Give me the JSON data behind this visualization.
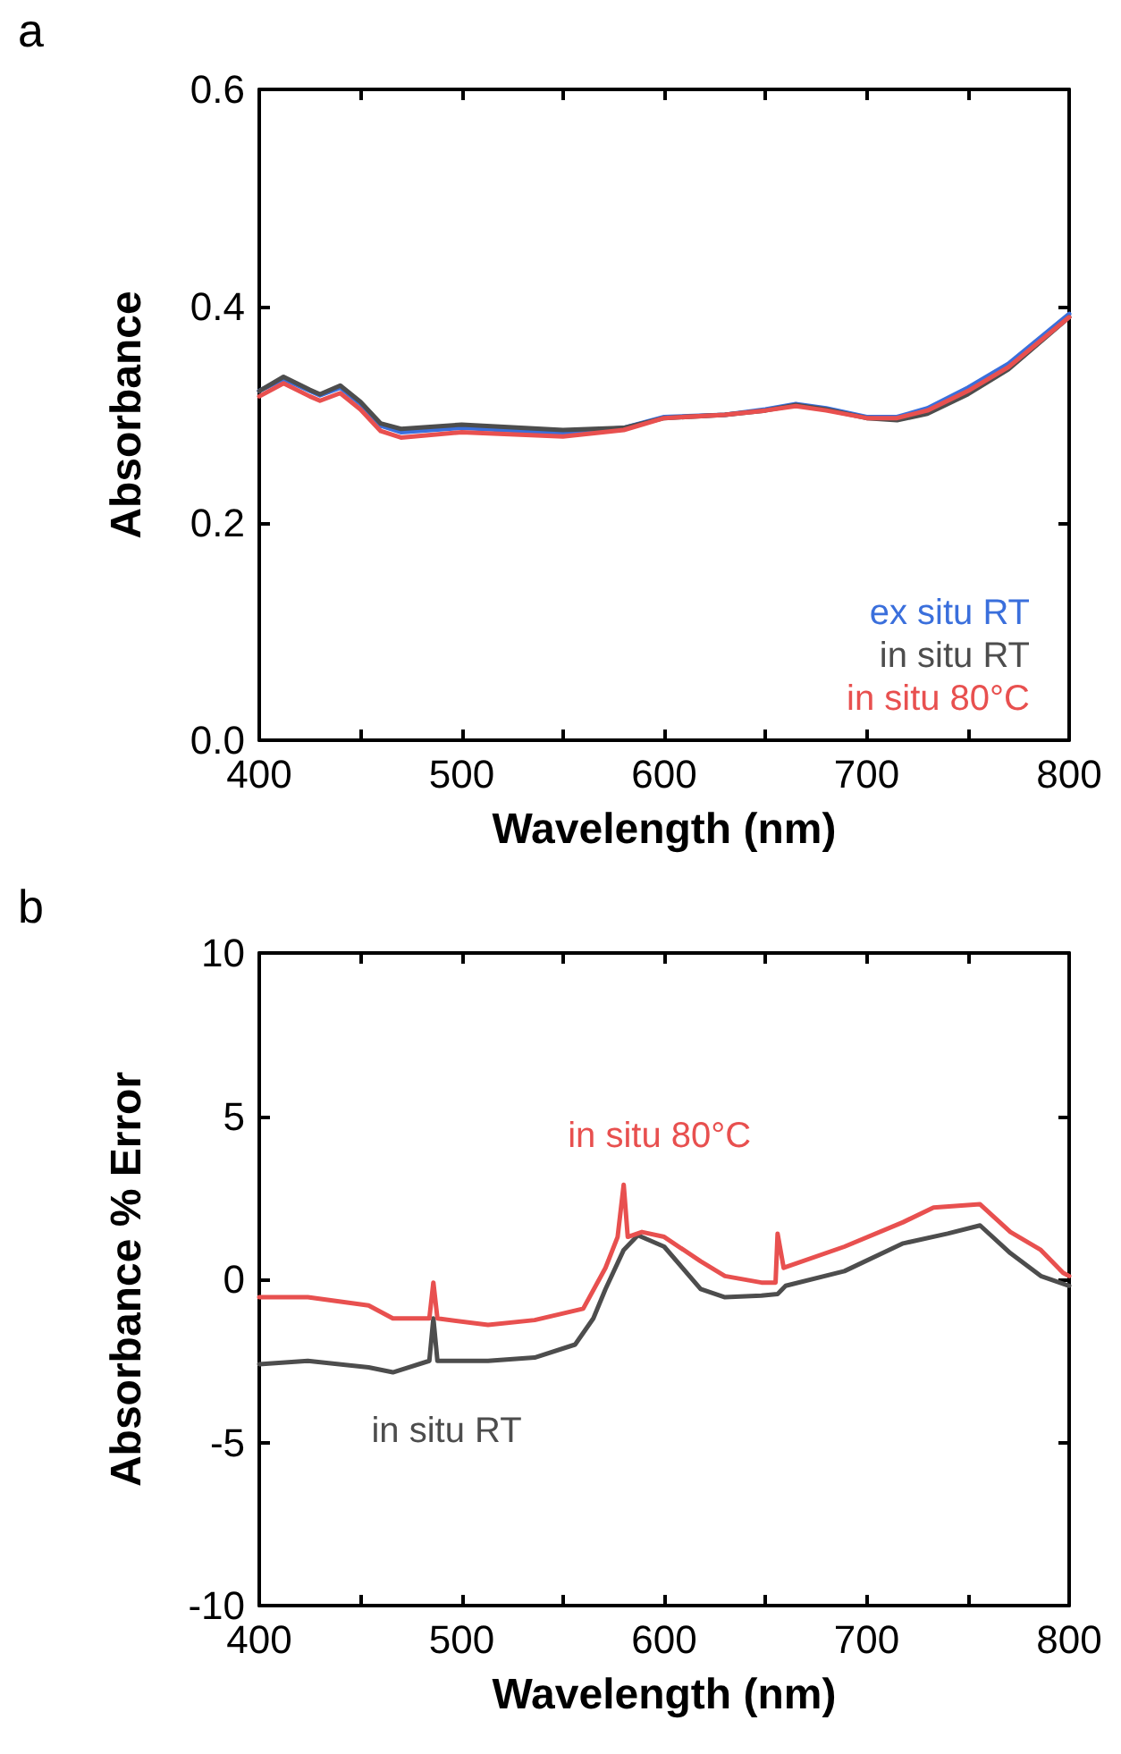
{
  "chart_data": [
    {
      "type": "line",
      "title": "a",
      "xlabel": "Wavelength (nm)",
      "ylabel": "Absorbance",
      "x": [
        400,
        412,
        425,
        430,
        440,
        450,
        460,
        470,
        500,
        550,
        580,
        600,
        630,
        650,
        665,
        680,
        700,
        715,
        730,
        750,
        770,
        800
      ],
      "series": [
        {
          "name": "ex situ RT",
          "color": "#3a6fdc",
          "values": [
            0.322,
            0.333,
            0.322,
            0.318,
            0.325,
            0.31,
            0.29,
            0.284,
            0.288,
            0.283,
            0.288,
            0.298,
            0.3,
            0.305,
            0.31,
            0.306,
            0.298,
            0.298,
            0.306,
            0.325,
            0.347,
            0.393
          ]
        },
        {
          "name": "in situ RT",
          "color": "#4d4d4d",
          "values": [
            0.322,
            0.335,
            0.323,
            0.319,
            0.327,
            0.312,
            0.292,
            0.287,
            0.291,
            0.286,
            0.288,
            0.297,
            0.3,
            0.304,
            0.309,
            0.305,
            0.297,
            0.295,
            0.301,
            0.319,
            0.342,
            0.39
          ]
        },
        {
          "name": "in situ 80°C",
          "color": "#e8504f",
          "values": [
            0.317,
            0.329,
            0.317,
            0.313,
            0.32,
            0.305,
            0.285,
            0.279,
            0.284,
            0.28,
            0.286,
            0.297,
            0.3,
            0.304,
            0.308,
            0.304,
            0.297,
            0.297,
            0.304,
            0.322,
            0.344,
            0.39
          ]
        }
      ],
      "xlim": [
        400,
        800
      ],
      "xticks": [
        400,
        {
          "value": 450,
          "label": null
        },
        500,
        {
          "value": 550,
          "label": null
        },
        600,
        {
          "value": 650,
          "label": null
        },
        700,
        {
          "value": 750,
          "label": null
        },
        800
      ],
      "ylim": [
        0,
        0.6
      ],
      "yticks": [
        {
          "value": 0,
          "label": "0.0"
        },
        0.2,
        0.4,
        0.6
      ],
      "grid": false,
      "legend": "bottom right",
      "marker": "none",
      "line_style": "solid"
    },
    {
      "type": "line",
      "title": "b",
      "xlabel": "Wavelength (nm)",
      "ylabel": "Absorbance % Error",
      "series": [
        {
          "name": "in situ RT",
          "color": "#4d4d4d",
          "x": [
            400,
            424,
            454,
            466,
            484,
            486,
            488,
            513,
            536,
            556,
            565,
            571,
            580,
            587,
            600,
            618,
            630,
            648,
            656,
            660,
            689,
            718,
            740,
            756,
            771,
            786,
            800
          ],
          "values": [
            -2.6,
            -2.5,
            -2.7,
            -2.85,
            -2.5,
            -1.2,
            -2.5,
            -2.5,
            -2.4,
            -2.0,
            -1.2,
            -0.3,
            0.9,
            1.35,
            1.0,
            -0.3,
            -0.55,
            -0.5,
            -0.45,
            -0.2,
            0.25,
            1.1,
            1.4,
            1.65,
            0.8,
            0.1,
            -0.2
          ]
        },
        {
          "name": "in situ 80°C",
          "color": "#e8504f",
          "x": [
            400,
            424,
            454,
            466,
            484,
            486,
            488,
            513,
            536,
            560,
            571,
            577,
            580,
            582,
            589,
            600,
            618,
            630,
            648,
            655,
            656,
            659,
            689,
            718,
            733,
            756,
            771,
            786,
            797,
            800
          ],
          "values": [
            -0.55,
            -0.55,
            -0.8,
            -1.2,
            -1.2,
            -0.1,
            -1.2,
            -1.4,
            -1.25,
            -0.9,
            0.35,
            1.3,
            2.9,
            1.3,
            1.45,
            1.3,
            0.55,
            0.1,
            -0.1,
            -0.1,
            1.4,
            0.35,
            1.0,
            1.75,
            2.2,
            2.3,
            1.45,
            0.9,
            0.2,
            0.1
          ]
        }
      ],
      "xlim": [
        400,
        800
      ],
      "xticks": [
        400,
        {
          "value": 450,
          "label": null
        },
        500,
        {
          "value": 550,
          "label": null
        },
        600,
        {
          "value": 650,
          "label": null
        },
        700,
        {
          "value": 750,
          "label": null
        },
        800
      ],
      "ylim": [
        -10,
        10
      ],
      "yticks": [
        -10,
        -5,
        0,
        5,
        10
      ],
      "grid": false,
      "legend": false,
      "marker": "none",
      "line_style": "solid"
    }
  ]
}
